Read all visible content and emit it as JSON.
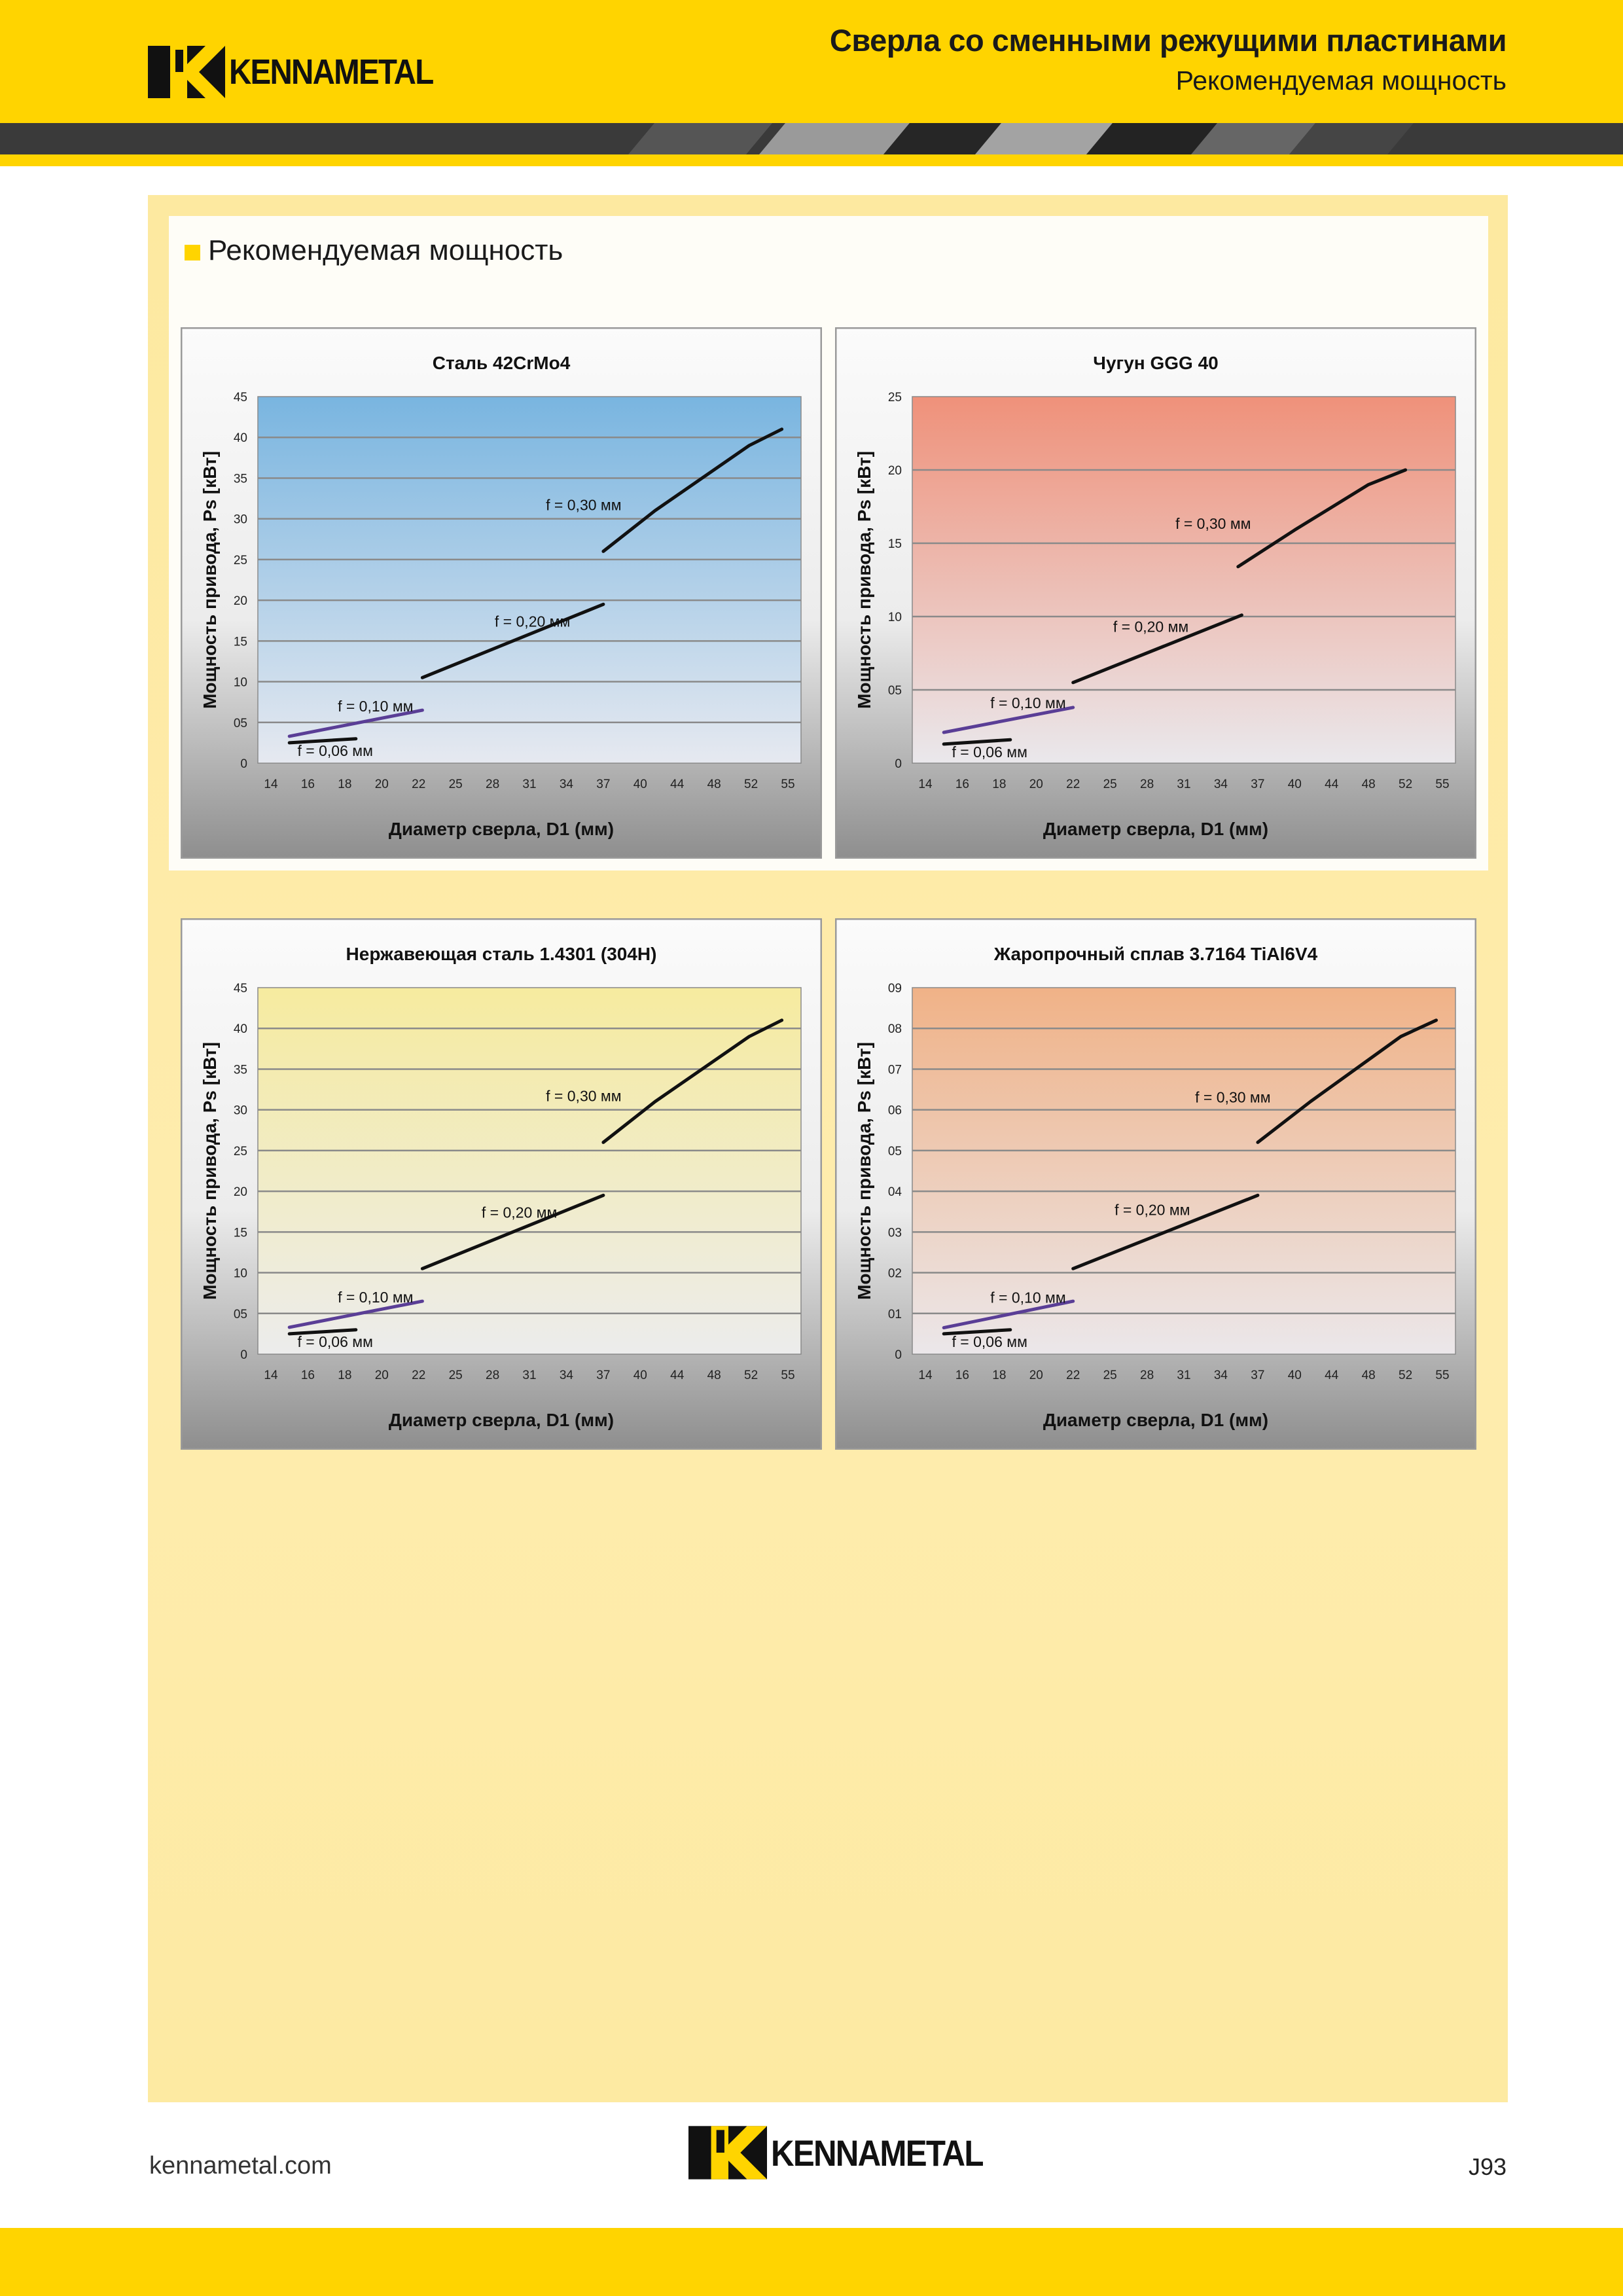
{
  "header": {
    "brand": "KENNAMETAL",
    "title": "Сверла со сменными режущими пластинами",
    "subtitle": "Рекомендуемая мощность"
  },
  "section": {
    "title": "Рекомендуемая мощность"
  },
  "footer": {
    "url": "kennametal.com",
    "brand": "KENNAMETAL",
    "page": "J93"
  },
  "colors": {
    "brand_yellow": "#ffd400",
    "chart_frame_bg": "#e6e6e6",
    "line_color": "#111111",
    "series_010_color": "#5a3e96"
  },
  "chart_data": [
    {
      "type": "line",
      "title": "Сталь 42CrMo4",
      "xlabel": "Диаметр сверла, D1 (мм)",
      "ylabel": "Мощность привода, Ps [кВт]",
      "x_ticks": [
        "14",
        "16",
        "18",
        "20",
        "22",
        "25",
        "28",
        "31",
        "34",
        "37",
        "40",
        "44",
        "48",
        "52",
        "55"
      ],
      "y_ticks": [
        "0",
        "05",
        "10",
        "15",
        "20",
        "25",
        "30",
        "35",
        "40",
        "45"
      ],
      "ylim": [
        0,
        45
      ],
      "grid": true,
      "plot_gradient": [
        "#79b5e0",
        "#e6e9f0"
      ],
      "series": [
        {
          "name": "f = 0,06 мм",
          "points": [
            [
              15.0,
              2.5
            ],
            [
              18.6,
              3.0
            ]
          ]
        },
        {
          "name": "f = 0,10 мм",
          "points": [
            [
              15.0,
              3.3
            ],
            [
              22.3,
              6.5
            ]
          ]
        },
        {
          "name": "f = 0,20 мм",
          "points": [
            [
              22.3,
              10.5
            ],
            [
              37.0,
              19.5
            ]
          ]
        },
        {
          "name": "f = 0,30 мм",
          "points": [
            [
              37.0,
              26.0
            ],
            [
              41.6,
              31.0
            ],
            [
              51.8,
              39.0
            ],
            [
              54.5,
              41.0
            ]
          ]
        }
      ]
    },
    {
      "type": "line",
      "title": "Чугун GGG 40",
      "xlabel": "Диаметр сверла, D1 (мм)",
      "ylabel": "Мощность привода, Ps [кВт]",
      "x_ticks": [
        "14",
        "16",
        "18",
        "20",
        "22",
        "25",
        "28",
        "31",
        "34",
        "37",
        "40",
        "44",
        "48",
        "52",
        "55"
      ],
      "y_ticks": [
        "0",
        "05",
        "10",
        "15",
        "20",
        "25"
      ],
      "ylim": [
        0,
        25
      ],
      "grid": true,
      "plot_gradient": [
        "#ef917a",
        "#eae8ec"
      ],
      "series": [
        {
          "name": "f = 0,06 мм",
          "points": [
            [
              15.0,
              1.3
            ],
            [
              18.6,
              1.6
            ]
          ]
        },
        {
          "name": "f = 0,10 мм",
          "points": [
            [
              15.0,
              2.1
            ],
            [
              22.0,
              3.8
            ]
          ]
        },
        {
          "name": "f = 0,20 мм",
          "points": [
            [
              22.0,
              5.5
            ],
            [
              35.7,
              10.1
            ]
          ]
        },
        {
          "name": "f = 0,30 мм",
          "points": [
            [
              35.4,
              13.4
            ],
            [
              40.0,
              15.9
            ],
            [
              48.0,
              19.0
            ],
            [
              52.0,
              20.0
            ]
          ]
        }
      ]
    },
    {
      "type": "line",
      "title": "Нержавеющая сталь 1.4301 (304H)",
      "xlabel": "Диаметр сверла, D1 (мм)",
      "ylabel": "Мощность привода, Ps [кВт]",
      "x_ticks": [
        "14",
        "16",
        "18",
        "20",
        "22",
        "25",
        "28",
        "31",
        "34",
        "37",
        "40",
        "44",
        "48",
        "52",
        "55"
      ],
      "y_ticks": [
        "0",
        "05",
        "10",
        "15",
        "20",
        "25",
        "30",
        "35",
        "40",
        "45"
      ],
      "ylim": [
        0,
        45
      ],
      "grid": true,
      "plot_gradient": [
        "#f6eb9f",
        "#ececec"
      ],
      "series": [
        {
          "name": "f = 0,06 мм",
          "points": [
            [
              15.0,
              2.5
            ],
            [
              18.6,
              3.0
            ]
          ]
        },
        {
          "name": "f = 0,10 мм",
          "points": [
            [
              15.0,
              3.3
            ],
            [
              22.3,
              6.5
            ]
          ]
        },
        {
          "name": "f = 0,20 мм",
          "points": [
            [
              22.3,
              10.5
            ],
            [
              37.0,
              19.5
            ]
          ]
        },
        {
          "name": "f = 0,30 мм",
          "points": [
            [
              37.0,
              26.0
            ],
            [
              41.6,
              31.0
            ],
            [
              51.8,
              39.0
            ],
            [
              54.5,
              41.0
            ]
          ]
        }
      ]
    },
    {
      "type": "line",
      "title": "Жаропрочный сплав 3.7164 TiAl6V4",
      "xlabel": "Диаметр сверла, D1 (мм)",
      "ylabel": "Мощность привода, Ps [кВт]",
      "x_ticks": [
        "14",
        "16",
        "18",
        "20",
        "22",
        "25",
        "28",
        "31",
        "34",
        "37",
        "40",
        "44",
        "48",
        "52",
        "55"
      ],
      "y_ticks": [
        "0",
        "01",
        "02",
        "03",
        "04",
        "05",
        "06",
        "07",
        "08",
        "09"
      ],
      "ylim": [
        0,
        9
      ],
      "grid": true,
      "plot_gradient": [
        "#f0b287",
        "#ebe7ea"
      ],
      "series": [
        {
          "name": "f = 0,06 мм",
          "points": [
            [
              15.0,
              0.5
            ],
            [
              18.6,
              0.6
            ]
          ]
        },
        {
          "name": "f = 0,10 мм",
          "points": [
            [
              15.0,
              0.65
            ],
            [
              22.0,
              1.3
            ]
          ]
        },
        {
          "name": "f = 0,20 мм",
          "points": [
            [
              22.0,
              2.1
            ],
            [
              37.0,
              3.9
            ]
          ]
        },
        {
          "name": "f = 0,30 мм",
          "points": [
            [
              37.0,
              5.2
            ],
            [
              41.7,
              6.2
            ],
            [
              51.5,
              7.8
            ],
            [
              54.5,
              8.2
            ]
          ]
        }
      ]
    }
  ]
}
